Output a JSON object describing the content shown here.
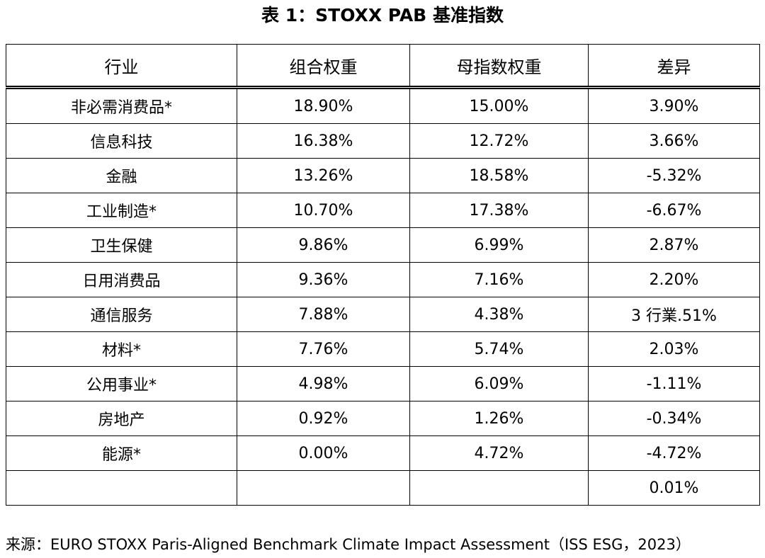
{
  "title": "表 1：STOXX PAB 基准指数",
  "table": {
    "header": [
      "行业",
      "组合权重",
      "母指数权重",
      "差异"
    ],
    "rows": [
      [
        "非必需消费品*",
        "18.90%",
        "15.00%",
        "3.90%"
      ],
      [
        "信息科技",
        "16.38%",
        "12.72%",
        "3.66%"
      ],
      [
        "金融",
        "13.26%",
        "18.58%",
        "-5.32%"
      ],
      [
        "工业制造*",
        "10.70%",
        "17.38%",
        "-6.67%"
      ],
      [
        "卫生保健",
        "9.86%",
        "6.99%",
        "2.87%"
      ],
      [
        "日用消费品",
        "9.36%",
        "7.16%",
        "2.20%"
      ],
      [
        "通信服务",
        "7.88%",
        "4.38%",
        "3 行業.51%"
      ],
      [
        "材料*",
        "7.76%",
        "5.74%",
        "2.03%"
      ],
      [
        "公用事业*",
        "4.98%",
        "6.09%",
        "-1.11%"
      ],
      [
        "房地产",
        "0.92%",
        "1.26%",
        "-0.34%"
      ],
      [
        "能源*",
        "0.00%",
        "4.72%",
        "-4.72%"
      ]
    ],
    "total_difference": "0.01%"
  },
  "source": "来源：EURO STOXX Paris-Aligned Benchmark Climate Impact Assessment（ISS ESG，2023）"
}
